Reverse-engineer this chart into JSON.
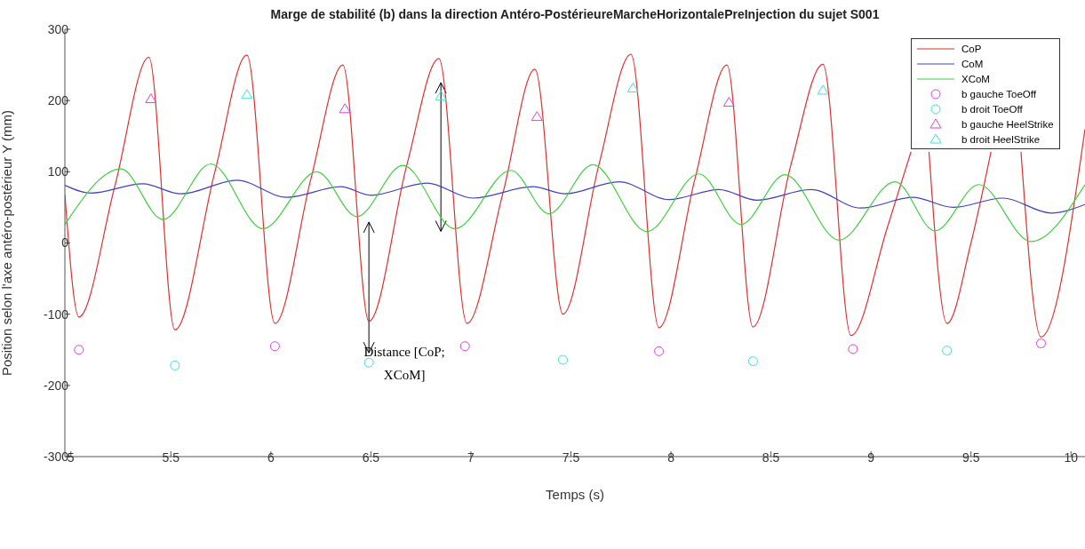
{
  "chart_data": {
    "type": "line",
    "title": "Marge de stabilité (b) dans la direction Antéro-PostérieureMarcheHorizontalePreInjection du sujet S001",
    "xlabel": "Temps (s)",
    "ylabel": "Position selon l'axe antéro-postérieur Y (mm)",
    "xlim": [
      4.97,
      10.07
    ],
    "ylim": [
      -300,
      300
    ],
    "xticks": [
      5,
      5.5,
      6,
      6.5,
      7,
      7.5,
      8,
      8.5,
      9,
      9.5,
      10
    ],
    "yticks": [
      -300,
      -200,
      -100,
      0,
      100,
      200,
      300
    ],
    "grid": false,
    "legend": "top right",
    "annotations": [
      {
        "text": "Distance [CoP; XCoM]",
        "x": 6.49,
        "y": -110
      }
    ],
    "series": [
      {
        "name": "CoP",
        "color": "#e03030",
        "marker": "none",
        "x": [
          4.97,
          5.04,
          5.22,
          5.39,
          5.52,
          5.72,
          5.88,
          6.02,
          6.2,
          6.36,
          6.49,
          6.68,
          6.84,
          6.98,
          7.16,
          7.32,
          7.46,
          7.64,
          7.8,
          7.94,
          8.12,
          8.28,
          8.41,
          8.6,
          8.76,
          8.9,
          9.08,
          9.2,
          9.25,
          9.29,
          9.38,
          9.5,
          9.6,
          9.68,
          9.75,
          9.85,
          10.07
        ],
        "values": [
          68,
          -104,
          80,
          261,
          -122,
          100,
          264,
          -113,
          90,
          250,
          -110,
          110,
          259,
          -113,
          70,
          244,
          -100,
          110,
          265,
          -119,
          90,
          250,
          -118,
          110,
          251,
          -130,
          20,
          128,
          null,
          128,
          -113,
          0,
          128,
          null,
          128,
          -132,
          160
        ]
      },
      {
        "name": "CoM",
        "color": "#4040c8",
        "marker": "none",
        "x": [
          4.97,
          5.1,
          5.36,
          5.55,
          5.83,
          6.08,
          6.35,
          6.5,
          6.78,
          7.01,
          7.31,
          7.47,
          7.74,
          7.99,
          8.24,
          8.43,
          8.7,
          8.95,
          9.21,
          9.41,
          9.66,
          9.9,
          10.07
        ],
        "values": [
          81,
          70,
          83,
          69,
          88,
          64,
          79,
          67,
          84,
          63,
          79,
          69,
          86,
          61,
          75,
          60,
          75,
          49,
          64,
          50,
          63,
          42,
          54
        ]
      },
      {
        "name": "XCoM",
        "color": "#40d040",
        "marker": "none",
        "x": [
          4.97,
          5.25,
          5.46,
          5.7,
          5.96,
          6.23,
          6.43,
          6.66,
          6.92,
          7.2,
          7.39,
          7.61,
          7.88,
          8.14,
          8.35,
          8.57,
          8.84,
          9.12,
          9.32,
          9.54,
          9.8,
          10.07
        ],
        "values": [
          26,
          104,
          33,
          111,
          20,
          100,
          37,
          109,
          20,
          102,
          41,
          110,
          16,
          97,
          26,
          96,
          4,
          86,
          17,
          82,
          2,
          82
        ]
      },
      {
        "name": "b gauche ToeOff",
        "type": "scatter",
        "color": "#e040e0",
        "marker": "circle",
        "x": [
          5.04,
          6.02,
          6.97,
          7.94,
          8.91,
          9.85
        ],
        "values": [
          -150,
          -145,
          -145,
          -152,
          -149,
          -141
        ]
      },
      {
        "name": "b droit ToeOff",
        "type": "scatter",
        "color": "#40e0e0",
        "marker": "circle",
        "x": [
          5.52,
          6.49,
          7.46,
          8.41,
          9.38
        ],
        "values": [
          -172,
          -168,
          -164,
          -166,
          -151
        ]
      },
      {
        "name": "b gauche HeelStrike",
        "type": "scatter",
        "color": "#e040e0",
        "marker": "triangle",
        "x": [
          5.4,
          6.37,
          7.33,
          8.29
        ],
        "values": [
          202,
          188,
          177,
          197
        ]
      },
      {
        "name": "b droit HeelStrike",
        "type": "scatter",
        "color": "#40e0e0",
        "marker": "triangle",
        "x": [
          5.88,
          6.85,
          7.81,
          8.76
        ],
        "values": [
          208,
          206,
          217,
          214
        ]
      }
    ]
  }
}
